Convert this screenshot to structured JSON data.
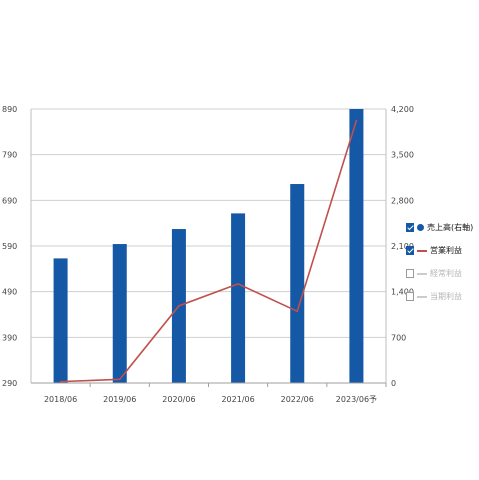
{
  "chart_data": {
    "type": "bar",
    "categories": [
      "2018/06",
      "2019/06",
      "2020/06",
      "2021/06",
      "2022/06",
      "2023/06予"
    ],
    "series": [
      {
        "name": "売上高(右軸)",
        "type": "bar",
        "axis": "right",
        "color": "#1558a6",
        "values": [
          1910,
          2130,
          2360,
          2600,
          3050,
          4200
        ]
      },
      {
        "name": "営業利益",
        "type": "line",
        "axis": "left",
        "color": "#c0504d",
        "values": [
          293,
          298,
          459,
          507,
          447,
          865
        ]
      }
    ],
    "y_left": {
      "ticks": [
        "890",
        "790",
        "690",
        "590",
        "490",
        "390",
        "290"
      ],
      "min": 290,
      "max": 890
    },
    "y_right": {
      "ticks": [
        "4,200",
        "3,500",
        "2,800",
        "2,100",
        "1,400",
        "700",
        "0"
      ],
      "min": 0,
      "max": 4200
    },
    "grid": true
  },
  "legend": [
    {
      "label": "売上高(右軸)",
      "checked": true,
      "swatch": "dot",
      "color": "#1558a6"
    },
    {
      "label": "営業利益",
      "checked": true,
      "swatch": "line",
      "color": "#c0504d"
    },
    {
      "label": "経常利益",
      "checked": false,
      "swatch": "line",
      "color": "#cccccc"
    },
    {
      "label": "当期利益",
      "checked": false,
      "swatch": "line",
      "color": "#cccccc"
    }
  ]
}
